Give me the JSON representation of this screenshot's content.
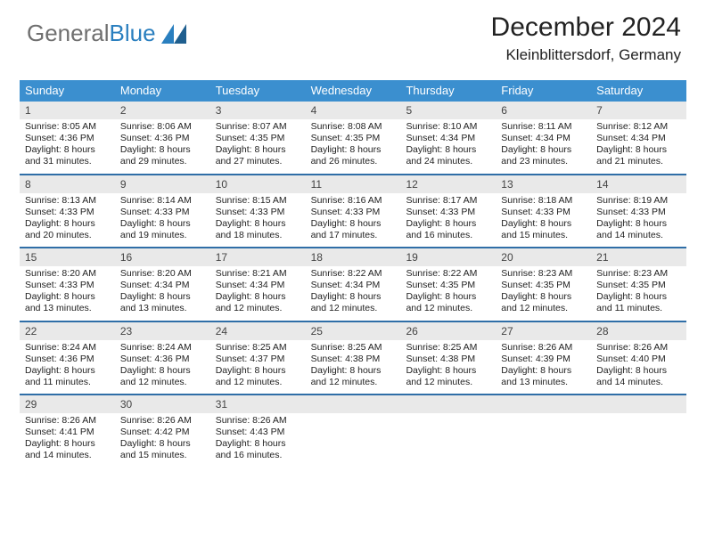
{
  "brand": {
    "part1": "General",
    "part2": "Blue"
  },
  "header": {
    "month": "December 2024",
    "location": "Kleinblittersdorf, Germany"
  },
  "colors": {
    "header_bg": "#3b8fcf",
    "week_divider": "#2f6ea7",
    "daynum_bg": "#e9e9e9"
  },
  "weekdays": [
    "Sunday",
    "Monday",
    "Tuesday",
    "Wednesday",
    "Thursday",
    "Friday",
    "Saturday"
  ],
  "weeks": [
    [
      {
        "n": "1",
        "sr": "Sunrise: 8:05 AM",
        "ss": "Sunset: 4:36 PM",
        "d1": "Daylight: 8 hours",
        "d2": "and 31 minutes."
      },
      {
        "n": "2",
        "sr": "Sunrise: 8:06 AM",
        "ss": "Sunset: 4:36 PM",
        "d1": "Daylight: 8 hours",
        "d2": "and 29 minutes."
      },
      {
        "n": "3",
        "sr": "Sunrise: 8:07 AM",
        "ss": "Sunset: 4:35 PM",
        "d1": "Daylight: 8 hours",
        "d2": "and 27 minutes."
      },
      {
        "n": "4",
        "sr": "Sunrise: 8:08 AM",
        "ss": "Sunset: 4:35 PM",
        "d1": "Daylight: 8 hours",
        "d2": "and 26 minutes."
      },
      {
        "n": "5",
        "sr": "Sunrise: 8:10 AM",
        "ss": "Sunset: 4:34 PM",
        "d1": "Daylight: 8 hours",
        "d2": "and 24 minutes."
      },
      {
        "n": "6",
        "sr": "Sunrise: 8:11 AM",
        "ss": "Sunset: 4:34 PM",
        "d1": "Daylight: 8 hours",
        "d2": "and 23 minutes."
      },
      {
        "n": "7",
        "sr": "Sunrise: 8:12 AM",
        "ss": "Sunset: 4:34 PM",
        "d1": "Daylight: 8 hours",
        "d2": "and 21 minutes."
      }
    ],
    [
      {
        "n": "8",
        "sr": "Sunrise: 8:13 AM",
        "ss": "Sunset: 4:33 PM",
        "d1": "Daylight: 8 hours",
        "d2": "and 20 minutes."
      },
      {
        "n": "9",
        "sr": "Sunrise: 8:14 AM",
        "ss": "Sunset: 4:33 PM",
        "d1": "Daylight: 8 hours",
        "d2": "and 19 minutes."
      },
      {
        "n": "10",
        "sr": "Sunrise: 8:15 AM",
        "ss": "Sunset: 4:33 PM",
        "d1": "Daylight: 8 hours",
        "d2": "and 18 minutes."
      },
      {
        "n": "11",
        "sr": "Sunrise: 8:16 AM",
        "ss": "Sunset: 4:33 PM",
        "d1": "Daylight: 8 hours",
        "d2": "and 17 minutes."
      },
      {
        "n": "12",
        "sr": "Sunrise: 8:17 AM",
        "ss": "Sunset: 4:33 PM",
        "d1": "Daylight: 8 hours",
        "d2": "and 16 minutes."
      },
      {
        "n": "13",
        "sr": "Sunrise: 8:18 AM",
        "ss": "Sunset: 4:33 PM",
        "d1": "Daylight: 8 hours",
        "d2": "and 15 minutes."
      },
      {
        "n": "14",
        "sr": "Sunrise: 8:19 AM",
        "ss": "Sunset: 4:33 PM",
        "d1": "Daylight: 8 hours",
        "d2": "and 14 minutes."
      }
    ],
    [
      {
        "n": "15",
        "sr": "Sunrise: 8:20 AM",
        "ss": "Sunset: 4:33 PM",
        "d1": "Daylight: 8 hours",
        "d2": "and 13 minutes."
      },
      {
        "n": "16",
        "sr": "Sunrise: 8:20 AM",
        "ss": "Sunset: 4:34 PM",
        "d1": "Daylight: 8 hours",
        "d2": "and 13 minutes."
      },
      {
        "n": "17",
        "sr": "Sunrise: 8:21 AM",
        "ss": "Sunset: 4:34 PM",
        "d1": "Daylight: 8 hours",
        "d2": "and 12 minutes."
      },
      {
        "n": "18",
        "sr": "Sunrise: 8:22 AM",
        "ss": "Sunset: 4:34 PM",
        "d1": "Daylight: 8 hours",
        "d2": "and 12 minutes."
      },
      {
        "n": "19",
        "sr": "Sunrise: 8:22 AM",
        "ss": "Sunset: 4:35 PM",
        "d1": "Daylight: 8 hours",
        "d2": "and 12 minutes."
      },
      {
        "n": "20",
        "sr": "Sunrise: 8:23 AM",
        "ss": "Sunset: 4:35 PM",
        "d1": "Daylight: 8 hours",
        "d2": "and 12 minutes."
      },
      {
        "n": "21",
        "sr": "Sunrise: 8:23 AM",
        "ss": "Sunset: 4:35 PM",
        "d1": "Daylight: 8 hours",
        "d2": "and 11 minutes."
      }
    ],
    [
      {
        "n": "22",
        "sr": "Sunrise: 8:24 AM",
        "ss": "Sunset: 4:36 PM",
        "d1": "Daylight: 8 hours",
        "d2": "and 11 minutes."
      },
      {
        "n": "23",
        "sr": "Sunrise: 8:24 AM",
        "ss": "Sunset: 4:36 PM",
        "d1": "Daylight: 8 hours",
        "d2": "and 12 minutes."
      },
      {
        "n": "24",
        "sr": "Sunrise: 8:25 AM",
        "ss": "Sunset: 4:37 PM",
        "d1": "Daylight: 8 hours",
        "d2": "and 12 minutes."
      },
      {
        "n": "25",
        "sr": "Sunrise: 8:25 AM",
        "ss": "Sunset: 4:38 PM",
        "d1": "Daylight: 8 hours",
        "d2": "and 12 minutes."
      },
      {
        "n": "26",
        "sr": "Sunrise: 8:25 AM",
        "ss": "Sunset: 4:38 PM",
        "d1": "Daylight: 8 hours",
        "d2": "and 12 minutes."
      },
      {
        "n": "27",
        "sr": "Sunrise: 8:26 AM",
        "ss": "Sunset: 4:39 PM",
        "d1": "Daylight: 8 hours",
        "d2": "and 13 minutes."
      },
      {
        "n": "28",
        "sr": "Sunrise: 8:26 AM",
        "ss": "Sunset: 4:40 PM",
        "d1": "Daylight: 8 hours",
        "d2": "and 14 minutes."
      }
    ],
    [
      {
        "n": "29",
        "sr": "Sunrise: 8:26 AM",
        "ss": "Sunset: 4:41 PM",
        "d1": "Daylight: 8 hours",
        "d2": "and 14 minutes."
      },
      {
        "n": "30",
        "sr": "Sunrise: 8:26 AM",
        "ss": "Sunset: 4:42 PM",
        "d1": "Daylight: 8 hours",
        "d2": "and 15 minutes."
      },
      {
        "n": "31",
        "sr": "Sunrise: 8:26 AM",
        "ss": "Sunset: 4:43 PM",
        "d1": "Daylight: 8 hours",
        "d2": "and 16 minutes."
      },
      {
        "empty": true
      },
      {
        "empty": true
      },
      {
        "empty": true
      },
      {
        "empty": true
      }
    ]
  ]
}
